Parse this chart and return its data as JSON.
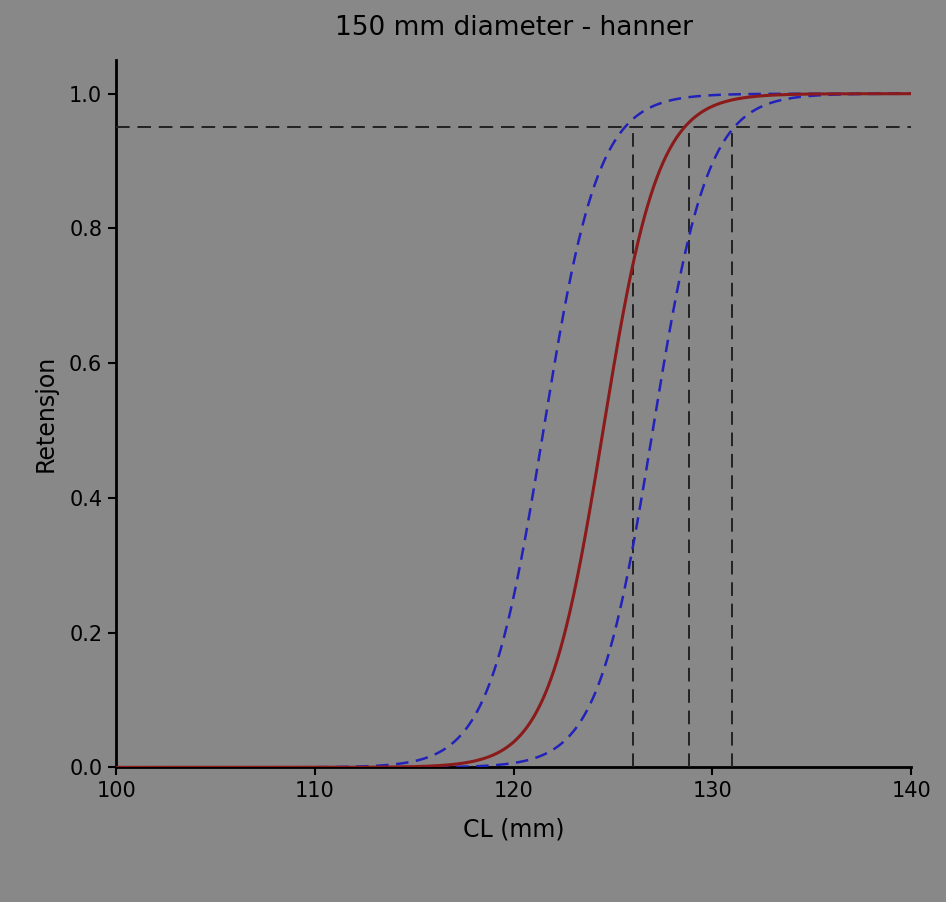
{
  "title": "150 mm diameter - hanner",
  "xlabel": "CL (mm)",
  "ylabel": "Retensjon",
  "xlim": [
    100,
    140
  ],
  "ylim": [
    0.0,
    1.05
  ],
  "background_color": "#888888",
  "axes_background_color": "#888888",
  "main_curve_color": "#8B1A1A",
  "ci_curve_color": "#2222BB",
  "dashed_line_color": "#222222",
  "main_L50": 124.5,
  "main_slope": 0.72,
  "ci_lower_L50": 121.5,
  "ci_lower_slope": 0.72,
  "ci_upper_L50": 127.0,
  "ci_upper_slope": 0.72,
  "hline_y": 0.95,
  "vline_x1": 126.0,
  "vline_x2": 128.8,
  "vline_x3": 131.0,
  "figsize": [
    9.46,
    9.02
  ],
  "dpi": 100
}
